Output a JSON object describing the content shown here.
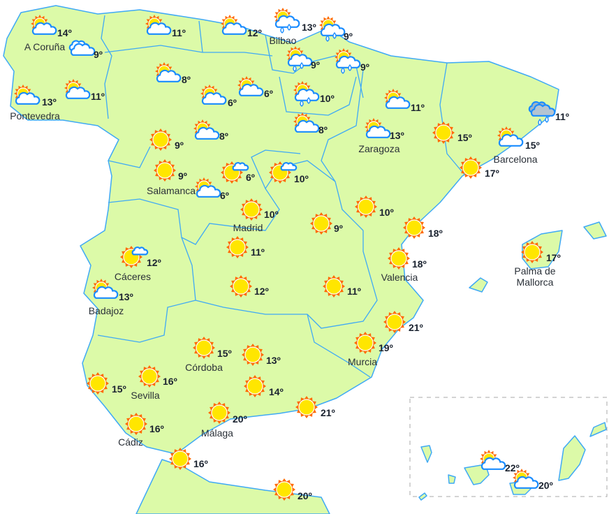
{
  "map": {
    "colors": {
      "land": "#dcfaa8",
      "border": "#3fa9f5",
      "sun": "#ffe600",
      "sun_rays": "#ff6a00",
      "cloud_outline": "#1a8cff"
    },
    "stations": [
      {
        "name": "A Coruña",
        "temp": "14º",
        "icon": "sun-cloud"
      },
      {
        "name": "",
        "temp": "9º",
        "icon": "cloud"
      },
      {
        "name": "Pontevedra",
        "temp": "13º",
        "icon": "sun-cloud"
      },
      {
        "name": "",
        "temp": "11º",
        "icon": "sun-cloud"
      },
      {
        "name": "",
        "temp": "11º",
        "icon": "sun-cloud"
      },
      {
        "name": "",
        "temp": "12º",
        "icon": "sun-cloud"
      },
      {
        "name": "Bilbao",
        "temp": "13º",
        "icon": "sun-cloud-rain"
      },
      {
        "name": "",
        "temp": "9º",
        "icon": "sun-cloud-rain"
      },
      {
        "name": "",
        "temp": "9º",
        "icon": "sun-cloud-rain"
      },
      {
        "name": "",
        "temp": "9º",
        "icon": "sun-cloud-rain"
      },
      {
        "name": "",
        "temp": "8º",
        "icon": "sun-cloud"
      },
      {
        "name": "",
        "temp": "6º",
        "icon": "sun-cloud"
      },
      {
        "name": "",
        "temp": "6º",
        "icon": "sun-cloud"
      },
      {
        "name": "",
        "temp": "10º",
        "icon": "sun-cloud-rain"
      },
      {
        "name": "",
        "temp": "11º",
        "icon": "sun-cloud"
      },
      {
        "name": "",
        "temp": "11º",
        "icon": "storm-cloud-rain"
      },
      {
        "name": "",
        "temp": "9º",
        "icon": "sun"
      },
      {
        "name": "",
        "temp": "8º",
        "icon": "sun-cloud"
      },
      {
        "name": "",
        "temp": "8º",
        "icon": "sun-cloud"
      },
      {
        "name": "Zaragoza",
        "temp": "13º",
        "icon": "sun-cloud"
      },
      {
        "name": "",
        "temp": "15º",
        "icon": "sun"
      },
      {
        "name": "Barcelona",
        "temp": "15º",
        "icon": "sun-cloud"
      },
      {
        "name": "",
        "temp": "17º",
        "icon": "sun"
      },
      {
        "name": "Salamanca",
        "temp": "9º",
        "icon": "sun"
      },
      {
        "name": "",
        "temp": "6º",
        "icon": "sun-small-cloud"
      },
      {
        "name": "",
        "temp": "6º",
        "icon": "sun-cloud"
      },
      {
        "name": "",
        "temp": "10º",
        "icon": "sun-small-cloud"
      },
      {
        "name": "Madrid",
        "temp": "10º",
        "icon": "sun"
      },
      {
        "name": "",
        "temp": "9º",
        "icon": "sun"
      },
      {
        "name": "",
        "temp": "10º",
        "icon": "sun"
      },
      {
        "name": "",
        "temp": "18º",
        "icon": "sun"
      },
      {
        "name": "",
        "temp": "11º",
        "icon": "sun"
      },
      {
        "name": "Cáceres",
        "temp": "12º",
        "icon": "sun-small-cloud"
      },
      {
        "name": "Valencia",
        "temp": "18º",
        "icon": "sun"
      },
      {
        "name": "Palma de Mallorca",
        "temp": "17º",
        "icon": "sun"
      },
      {
        "name": "Badajoz",
        "temp": "13º",
        "icon": "sun-cloud"
      },
      {
        "name": "",
        "temp": "12º",
        "icon": "sun"
      },
      {
        "name": "",
        "temp": "11º",
        "icon": "sun"
      },
      {
        "name": "",
        "temp": "21º",
        "icon": "sun"
      },
      {
        "name": "Murcia",
        "temp": "19º",
        "icon": "sun"
      },
      {
        "name": "Córdoba",
        "temp": "15º",
        "icon": "sun"
      },
      {
        "name": "",
        "temp": "13º",
        "icon": "sun"
      },
      {
        "name": "Sevilla",
        "temp": "16º",
        "icon": "sun"
      },
      {
        "name": "",
        "temp": "15º",
        "icon": "sun"
      },
      {
        "name": "",
        "temp": "14º",
        "icon": "sun"
      },
      {
        "name": "",
        "temp": "21º",
        "icon": "sun"
      },
      {
        "name": "Málaga",
        "temp": "20º",
        "icon": "sun"
      },
      {
        "name": "Cádiz",
        "temp": "16º",
        "icon": "sun"
      },
      {
        "name": "",
        "temp": "16º",
        "icon": "sun"
      },
      {
        "name": "",
        "temp": "20º",
        "icon": "sun"
      },
      {
        "name": "",
        "temp": "22º",
        "icon": "sun-cloud"
      },
      {
        "name": "",
        "temp": "20º",
        "icon": "sun-cloud"
      }
    ]
  }
}
